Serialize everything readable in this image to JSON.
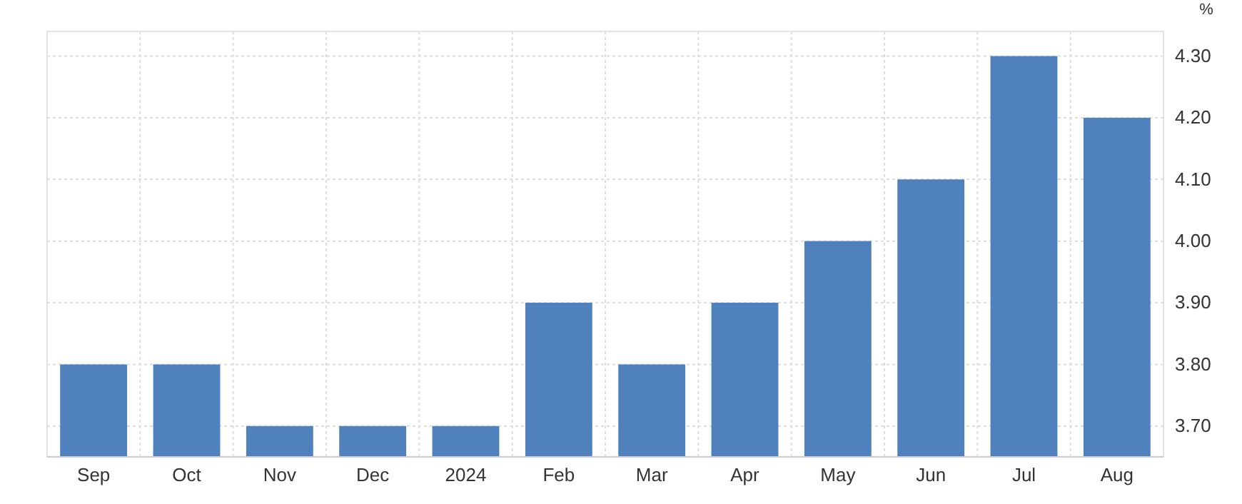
{
  "chart_data": {
    "type": "bar",
    "ylabel": "%",
    "categories": [
      "Sep",
      "Oct",
      "Nov",
      "Dec",
      "2024",
      "Feb",
      "Mar",
      "Apr",
      "May",
      "Jun",
      "Jul",
      "Aug"
    ],
    "values": [
      3.8,
      3.8,
      3.7,
      3.7,
      3.7,
      3.9,
      3.8,
      3.9,
      4.0,
      4.1,
      4.3,
      4.2
    ],
    "color": "#4f81bd",
    "ylim": [
      3.65,
      4.34
    ],
    "yticks": [
      {
        "value": 3.7,
        "label": "3.70"
      },
      {
        "value": 3.8,
        "label": "3.80"
      },
      {
        "value": 3.9,
        "label": "3.90"
      },
      {
        "value": 4.0,
        "label": "4.00"
      },
      {
        "value": 4.1,
        "label": "4.10"
      },
      {
        "value": 4.2,
        "label": "4.20"
      },
      {
        "value": 4.3,
        "label": "4.30"
      }
    ],
    "grid": true
  }
}
